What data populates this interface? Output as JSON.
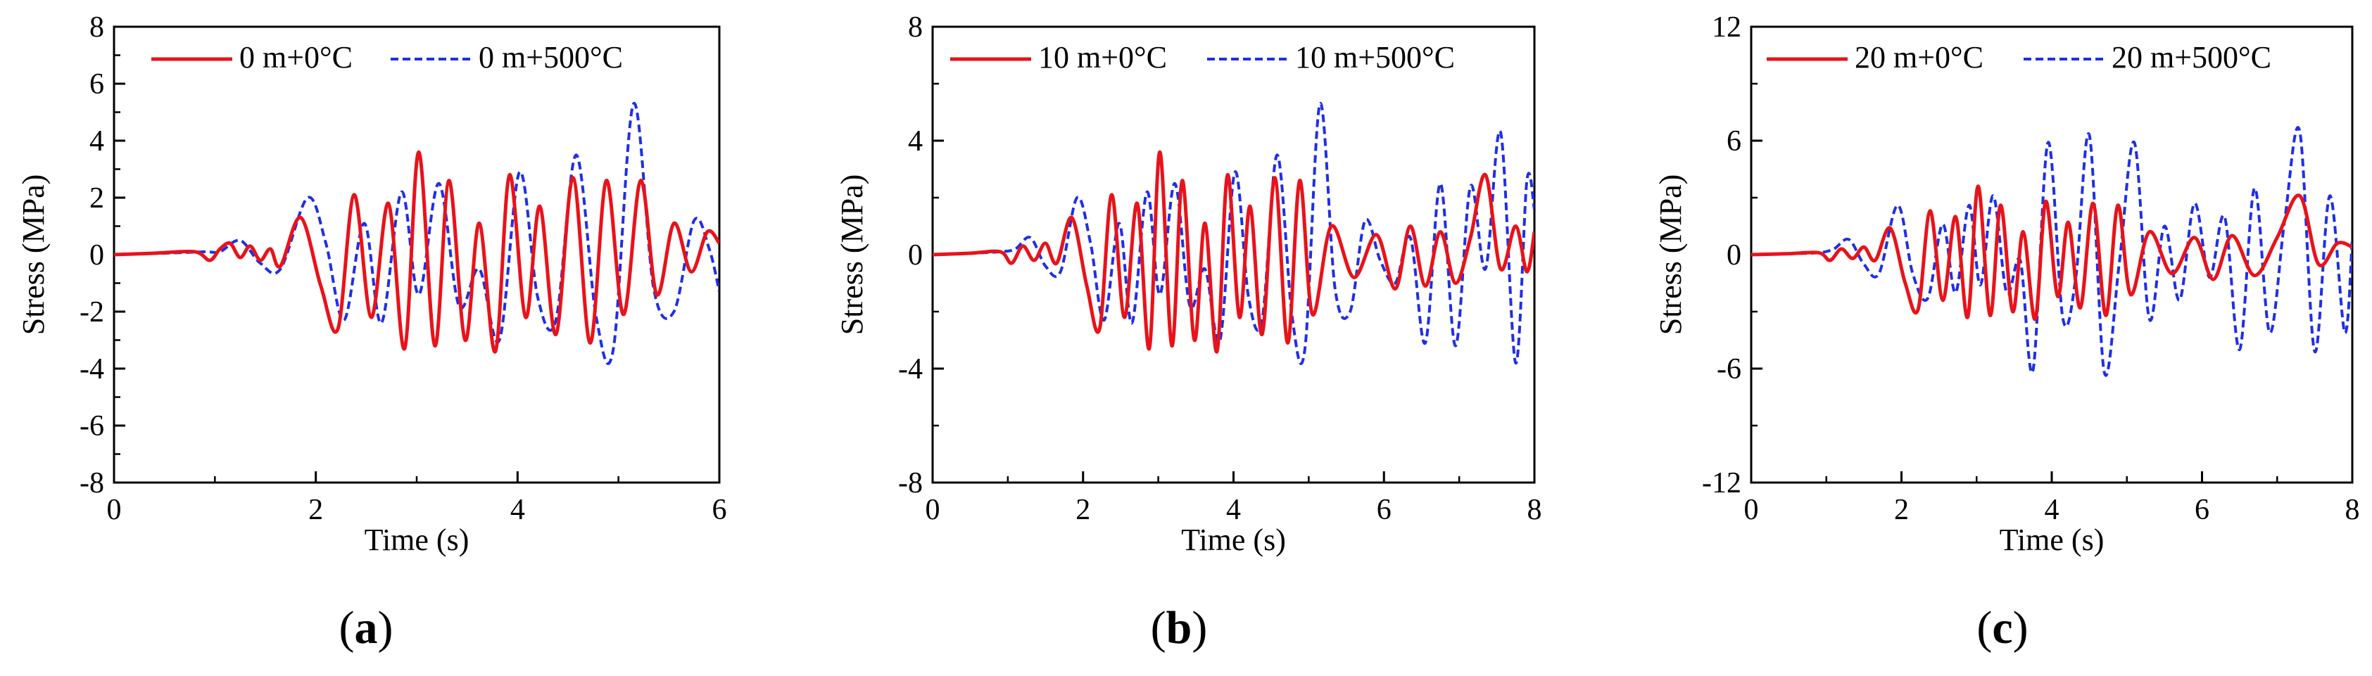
{
  "figure": {
    "captions": [
      {
        "open": "(",
        "letter": "a",
        "close": ")"
      },
      {
        "open": "(",
        "letter": "b",
        "close": ")"
      },
      {
        "open": "(",
        "letter": "c",
        "close": ")"
      }
    ]
  },
  "colors": {
    "series_red": "#e8131a",
    "series_blue": "#1f2fe6",
    "axis": "#000000"
  },
  "chart_data": [
    {
      "type": "line",
      "panel": "a",
      "xlabel": "Time (s)",
      "ylabel": "Stress (MPa)",
      "xlim": [
        0,
        6
      ],
      "ylim": [
        -8,
        8
      ],
      "xticks": [
        0,
        2,
        4,
        6
      ],
      "yticks": [
        -8,
        -6,
        -4,
        -2,
        0,
        2,
        4,
        6,
        8
      ],
      "legend_position": "top",
      "series": [
        {
          "name": "0 m+0°C",
          "style": "solid",
          "color": "#e8131a",
          "x": [
            0,
            0.4,
            0.8,
            0.95,
            1.05,
            1.15,
            1.25,
            1.35,
            1.45,
            1.55,
            1.65,
            1.85,
            2.05,
            2.22,
            2.38,
            2.55,
            2.72,
            2.88,
            3.02,
            3.18,
            3.32,
            3.48,
            3.62,
            3.78,
            3.92,
            4.08,
            4.22,
            4.38,
            4.55,
            4.72,
            4.88,
            5.05,
            5.22,
            5.38,
            5.55,
            5.72,
            5.88,
            6.0
          ],
          "y": [
            0,
            0.05,
            0.1,
            -0.2,
            0.2,
            0.4,
            -0.1,
            0.3,
            -0.2,
            0.2,
            -0.4,
            1.3,
            -1.1,
            -2.6,
            2.1,
            -2.2,
            1.8,
            -3.3,
            3.6,
            -3.2,
            2.6,
            -3.0,
            1.1,
            -3.4,
            2.8,
            -2.2,
            1.7,
            -2.8,
            2.7,
            -3.1,
            2.6,
            -2.1,
            2.6,
            -1.4,
            1.1,
            -0.6,
            0.8,
            0.4
          ]
        },
        {
          "name": "0 m+500°C",
          "style": "dashed",
          "color": "#1f2fe6",
          "x": [
            0,
            0.5,
            0.9,
            1.05,
            1.25,
            1.45,
            1.65,
            1.92,
            2.1,
            2.28,
            2.48,
            2.65,
            2.85,
            3.02,
            3.22,
            3.42,
            3.62,
            3.82,
            4.02,
            4.2,
            4.38,
            4.58,
            4.78,
            4.95,
            5.15,
            5.35,
            5.55,
            5.75,
            5.9,
            6.0
          ],
          "y": [
            0,
            0.05,
            0.1,
            0.1,
            0.5,
            -0.3,
            -0.5,
            2.0,
            0.4,
            -2.3,
            1.1,
            -2.4,
            2.2,
            -1.4,
            2.5,
            -1.8,
            -0.5,
            -3.0,
            2.9,
            -1.5,
            -2.3,
            3.5,
            -2.2,
            -3.3,
            5.3,
            -1.2,
            -2.0,
            1.2,
            0.2,
            -1.3
          ]
        }
      ]
    },
    {
      "type": "line",
      "panel": "b",
      "xlabel": "Time (s)",
      "ylabel": "Stress (MPa)",
      "xlim": [
        0,
        8
      ],
      "ylim": [
        -8,
        8
      ],
      "xticks": [
        0,
        2,
        4,
        6,
        8
      ],
      "yticks": [
        -8,
        -4,
        0,
        4,
        8
      ],
      "legend_position": "top",
      "series": [
        {
          "name": "10 m+0°C",
          "style": "solid",
          "color": "#e8131a",
          "x": [
            0,
            0.5,
            0.9,
            1.05,
            1.2,
            1.35,
            1.5,
            1.65,
            1.85,
            2.05,
            2.22,
            2.38,
            2.55,
            2.72,
            2.88,
            3.02,
            3.18,
            3.32,
            3.48,
            3.62,
            3.78,
            3.92,
            4.08,
            4.22,
            4.38,
            4.55,
            4.72,
            4.88,
            5.05,
            5.3,
            5.6,
            5.9,
            6.15,
            6.35,
            6.55,
            6.75,
            6.95,
            7.15,
            7.35,
            7.55,
            7.75,
            7.9,
            8.0
          ],
          "y": [
            0,
            0.05,
            0.1,
            -0.3,
            0.3,
            -0.2,
            0.4,
            -0.3,
            1.3,
            -1.1,
            -2.6,
            2.1,
            -2.2,
            1.8,
            -3.3,
            3.6,
            -3.2,
            2.6,
            -3.0,
            1.1,
            -3.4,
            2.8,
            -2.2,
            1.7,
            -2.8,
            2.7,
            -3.1,
            2.6,
            -2.1,
            1.0,
            -0.8,
            0.7,
            -1.2,
            1.0,
            -1.1,
            0.8,
            -1.0,
            0.6,
            2.8,
            -0.5,
            1.0,
            -0.6,
            0.8
          ]
        },
        {
          "name": "10 m+500°C",
          "style": "dashed",
          "color": "#1f2fe6",
          "x": [
            0,
            0.5,
            0.9,
            1.1,
            1.3,
            1.5,
            1.7,
            1.92,
            2.1,
            2.28,
            2.48,
            2.65,
            2.85,
            3.02,
            3.22,
            3.42,
            3.62,
            3.82,
            4.02,
            4.2,
            4.38,
            4.58,
            4.78,
            4.95,
            5.15,
            5.35,
            5.55,
            5.75,
            5.95,
            6.15,
            6.35,
            6.55,
            6.75,
            6.95,
            7.15,
            7.35,
            7.55,
            7.75,
            7.9,
            8.0
          ],
          "y": [
            0,
            0.05,
            0.1,
            0.2,
            0.6,
            -0.4,
            -0.6,
            2.0,
            0.4,
            -2.3,
            1.1,
            -2.4,
            2.2,
            -1.4,
            2.5,
            -1.8,
            -0.5,
            -3.0,
            2.9,
            -1.5,
            -2.3,
            3.5,
            -2.2,
            -3.3,
            5.3,
            -1.2,
            -2.0,
            1.2,
            -0.2,
            -1.0,
            0.6,
            -3.1,
            2.5,
            -3.2,
            2.4,
            -0.5,
            4.3,
            -3.8,
            2.6,
            1.6
          ]
        }
      ]
    },
    {
      "type": "line",
      "panel": "c",
      "xlabel": "Time (s)",
      "ylabel": "Stress (MPa)",
      "xlim": [
        0,
        8
      ],
      "ylim": [
        -12,
        12
      ],
      "xticks": [
        0,
        2,
        4,
        6,
        8
      ],
      "yticks": [
        -12,
        -6,
        0,
        6,
        12
      ],
      "legend_position": "top",
      "series": [
        {
          "name": "20 m+0°C",
          "style": "solid",
          "color": "#e8131a",
          "x": [
            0,
            0.5,
            0.9,
            1.05,
            1.2,
            1.35,
            1.5,
            1.65,
            1.85,
            2.05,
            2.22,
            2.38,
            2.55,
            2.72,
            2.88,
            3.02,
            3.18,
            3.32,
            3.48,
            3.62,
            3.78,
            3.92,
            4.08,
            4.22,
            4.38,
            4.55,
            4.72,
            4.88,
            5.05,
            5.3,
            5.6,
            5.9,
            6.15,
            6.4,
            6.7,
            7.0,
            7.3,
            7.55,
            7.8,
            8.0
          ],
          "y": [
            0,
            0.05,
            0.1,
            -0.3,
            0.3,
            -0.2,
            0.4,
            -0.3,
            1.4,
            -1.5,
            -2.9,
            2.3,
            -2.4,
            2.0,
            -3.3,
            3.6,
            -3.2,
            2.6,
            -3.0,
            1.2,
            -3.4,
            2.8,
            -2.2,
            1.7,
            -2.8,
            2.7,
            -3.2,
            2.6,
            -2.1,
            1.2,
            -1.0,
            0.9,
            -1.3,
            1.0,
            -1.1,
            0.9,
            3.1,
            -0.5,
            0.6,
            0.4
          ]
        },
        {
          "name": "20 m+500°C",
          "style": "dashed",
          "color": "#1f2fe6",
          "x": [
            0,
            0.5,
            0.9,
            1.1,
            1.3,
            1.5,
            1.7,
            1.95,
            2.15,
            2.35,
            2.55,
            2.72,
            2.9,
            3.05,
            3.22,
            3.4,
            3.58,
            3.75,
            3.95,
            4.15,
            4.32,
            4.5,
            4.7,
            4.9,
            5.1,
            5.3,
            5.5,
            5.7,
            5.9,
            6.1,
            6.3,
            6.5,
            6.7,
            6.9,
            7.1,
            7.3,
            7.5,
            7.7,
            7.9,
            8.0
          ],
          "y": [
            0,
            0.05,
            0.1,
            0.3,
            0.8,
            -0.5,
            -1.0,
            2.6,
            -1.0,
            -2.3,
            1.6,
            -2.0,
            2.6,
            -1.6,
            3.1,
            -2.0,
            -0.3,
            -6.1,
            5.9,
            -3.4,
            -1.2,
            6.3,
            -6.2,
            -0.4,
            5.9,
            -3.4,
            1.5,
            -2.4,
            2.7,
            -1.2,
            2.0,
            -5.0,
            3.5,
            -4.1,
            1.8,
            6.5,
            -5.1,
            3.1,
            -4.1,
            0.9
          ]
        }
      ]
    }
  ]
}
